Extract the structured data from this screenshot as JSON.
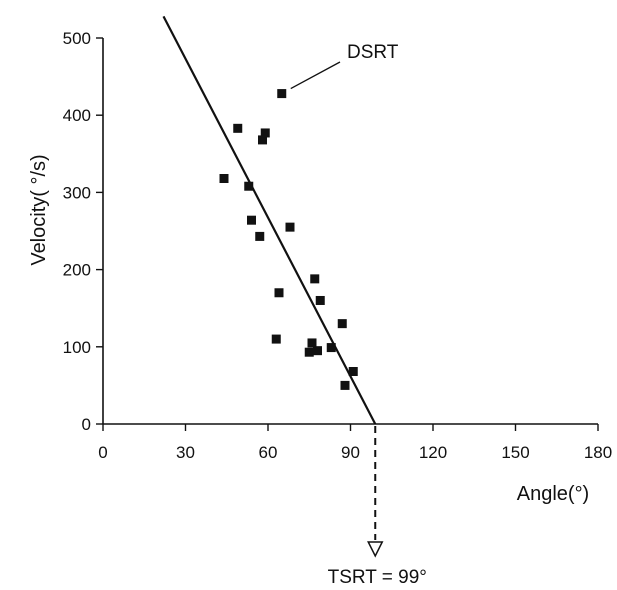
{
  "chart_data": {
    "type": "scatter",
    "xlabel": "Angle(°)",
    "ylabel": "Velocity( °/s)",
    "xlim": [
      0,
      180
    ],
    "ylim": [
      0,
      500
    ],
    "x_ticks": [
      "0",
      "30",
      "60",
      "90",
      "120",
      "150",
      "180"
    ],
    "y_ticks": [
      "0",
      "100",
      "200",
      "300",
      "400",
      "500"
    ],
    "grid": false,
    "points": [
      {
        "x": 44,
        "y": 318
      },
      {
        "x": 49,
        "y": 383
      },
      {
        "x": 53,
        "y": 308
      },
      {
        "x": 54,
        "y": 264
      },
      {
        "x": 57,
        "y": 243
      },
      {
        "x": 58,
        "y": 368
      },
      {
        "x": 59,
        "y": 377
      },
      {
        "x": 63,
        "y": 110
      },
      {
        "x": 64,
        "y": 170
      },
      {
        "x": 65,
        "y": 428
      },
      {
        "x": 68,
        "y": 255
      },
      {
        "x": 75,
        "y": 93
      },
      {
        "x": 76,
        "y": 105
      },
      {
        "x": 77,
        "y": 188
      },
      {
        "x": 78,
        "y": 95
      },
      {
        "x": 79,
        "y": 160
      },
      {
        "x": 83,
        "y": 99
      },
      {
        "x": 87,
        "y": 130
      },
      {
        "x": 88,
        "y": 50
      },
      {
        "x": 91,
        "y": 68
      }
    ],
    "fit_line": {
      "x": [
        22,
        99
      ],
      "y": [
        528,
        0
      ]
    },
    "annotations": {
      "outlier_label": "DSRT",
      "outlier_point": {
        "x": 65,
        "y": 428
      },
      "intercept_label": "TSRT = 99°",
      "intercept_x": 99
    }
  }
}
